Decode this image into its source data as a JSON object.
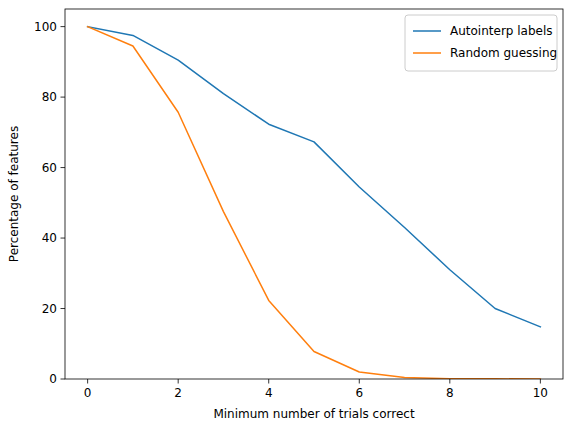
{
  "chart_data": {
    "type": "line",
    "x_label": "Minimum number of trials correct",
    "y_label": "Percentage of features",
    "x": [
      0,
      1,
      2,
      3,
      4,
      5,
      6,
      7,
      8,
      9,
      10
    ],
    "series": [
      {
        "name": "Autointerp labels",
        "color": "#1f77b4",
        "values": [
          100,
          97.5,
          90.5,
          81,
          72.3,
          67.3,
          54.5,
          43,
          31,
          20,
          14.8
        ]
      },
      {
        "name": "Random guessing",
        "color": "#ff7f0e",
        "values": [
          100,
          94.5,
          75.7,
          47.5,
          22.3,
          7.8,
          2,
          0.4,
          0.1,
          0.05,
          0
        ]
      }
    ],
    "xlim": [
      -0.5,
      10.5
    ],
    "ylim": [
      0,
      105
    ],
    "xticks": [
      0,
      2,
      4,
      6,
      8,
      10
    ],
    "yticks": [
      0,
      20,
      40,
      60,
      80,
      100
    ],
    "legend": "upper right",
    "grid": false
  }
}
